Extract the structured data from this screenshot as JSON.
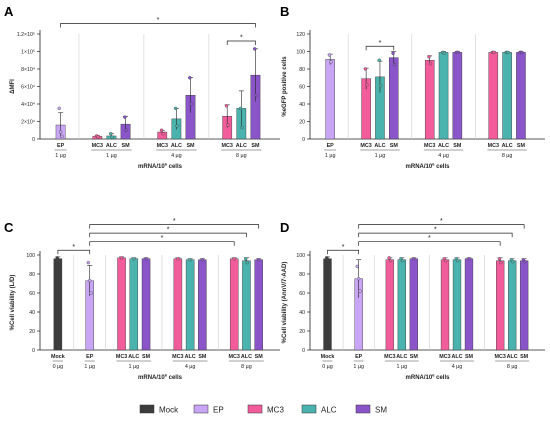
{
  "legend": [
    {
      "label": "Mock",
      "color": "#3d3d3d"
    },
    {
      "label": "EP",
      "color": "#c9a6f5"
    },
    {
      "label": "MC3",
      "color": "#f25c9a"
    },
    {
      "label": "ALC",
      "color": "#4bb3ad"
    },
    {
      "label": "SM",
      "color": "#8a55c9"
    }
  ],
  "colors": {
    "Mock": "#3d3d3d",
    "EP": "#c9a6f5",
    "MC3": "#f25c9a",
    "ALC": "#4bb3ad",
    "SM": "#8a55c9"
  },
  "chart_data": [
    {
      "panel": "A",
      "type": "bar",
      "ylabel": "ΔMFI",
      "xlabel_main": "mRNA/10",
      "xlabel_sup": "6",
      "xlabel_tail": " cells",
      "ylim": [
        0,
        120000
      ],
      "yticks": [
        "0",
        "2×10⁴",
        "4×10⁴",
        "6×10⁴",
        "8×10⁴",
        "1×10⁵",
        "1.2×10⁵"
      ],
      "ytick_values": [
        0,
        20000,
        40000,
        60000,
        80000,
        100000,
        120000
      ],
      "groups": [
        {
          "dose": "1 µg",
          "bars": [
            {
              "label": "EP",
              "series": "EP",
              "value": 16000,
              "err": 14000,
              "points": [
                35000,
                8000,
                3000
              ]
            }
          ]
        },
        {
          "dose": "1 µg",
          "bars": [
            {
              "label": "MC3",
              "series": "MC3",
              "value": 3000,
              "err": 1000,
              "points": [
                3500,
                2500
              ]
            },
            {
              "label": "ALC",
              "series": "ALC",
              "value": 3500,
              "err": 2500,
              "points": [
                6000,
                2000
              ]
            },
            {
              "label": "SM",
              "series": "SM",
              "value": 17000,
              "err": 9000,
              "points": [
                25000,
                10000
              ]
            }
          ]
        },
        {
          "dose": "4 µg",
          "bars": [
            {
              "label": "MC3",
              "series": "MC3",
              "value": 8000,
              "err": 2000,
              "points": [
                10000,
                6000
              ]
            },
            {
              "label": "ALC",
              "series": "ALC",
              "value": 23000,
              "err": 12000,
              "points": [
                35000,
                15000
              ]
            },
            {
              "label": "SM",
              "series": "SM",
              "value": 50000,
              "err": 20000,
              "points": [
                70000,
                40000
              ]
            }
          ]
        },
        {
          "dose": "8 µg",
          "bars": [
            {
              "label": "MC3",
              "series": "MC3",
              "value": 26000,
              "err": 13000,
              "points": [
                38000,
                16000
              ]
            },
            {
              "label": "ALC",
              "series": "ALC",
              "value": 35000,
              "err": 20000,
              "points": [
                35000,
                13000
              ]
            },
            {
              "label": "SM",
              "series": "SM",
              "value": 73000,
              "err": 30000,
              "points": [
                103000,
                50000
              ]
            }
          ]
        }
      ],
      "significance": [
        {
          "from": "0.0",
          "to": "3.2",
          "label": "*",
          "level": 132000
        },
        {
          "from": "3.0",
          "to": "3.2",
          "label": "*",
          "level": 112000
        }
      ]
    },
    {
      "panel": "B",
      "type": "bar",
      "ylabel": "%eGFP positive cells",
      "xlabel_main": "mRNA/10",
      "xlabel_sup": "6",
      "xlabel_tail": " cells",
      "ylim": [
        0,
        120
      ],
      "yticks": [
        "0",
        "20",
        "40",
        "60",
        "80",
        "100",
        "120"
      ],
      "ytick_values": [
        0,
        20,
        40,
        60,
        80,
        100,
        120
      ],
      "groups": [
        {
          "dose": "1 µg",
          "bars": [
            {
              "label": "EP",
              "series": "EP",
              "value": 91,
              "err": 6,
              "points": [
                96,
                88
              ]
            }
          ]
        },
        {
          "dose": "1 µg",
          "bars": [
            {
              "label": "MC3",
              "series": "MC3",
              "value": 69,
              "err": 12,
              "points": [
                80,
                62
              ]
            },
            {
              "label": "ALC",
              "series": "ALC",
              "value": 71,
              "err": 18,
              "points": [
                90,
                61
              ]
            },
            {
              "label": "SM",
              "series": "SM",
              "value": 93,
              "err": 7,
              "points": [
                98,
                85
              ]
            }
          ]
        },
        {
          "dose": "4 µg",
          "bars": [
            {
              "label": "MC3",
              "series": "MC3",
              "value": 90,
              "err": 5,
              "points": [
                94,
                86
              ]
            },
            {
              "label": "ALC",
              "series": "ALC",
              "value": 99,
              "err": 1,
              "points": [
                99,
                98
              ]
            },
            {
              "label": "SM",
              "series": "SM",
              "value": 99,
              "err": 1,
              "points": [
                99,
                99
              ]
            }
          ]
        },
        {
          "dose": "8 µg",
          "bars": [
            {
              "label": "MC3",
              "series": "MC3",
              "value": 99,
              "err": 1,
              "points": [
                99,
                99
              ]
            },
            {
              "label": "ALC",
              "series": "ALC",
              "value": 99,
              "err": 1,
              "points": [
                99,
                99
              ]
            },
            {
              "label": "SM",
              "series": "SM",
              "value": 99,
              "err": 1,
              "points": [
                99,
                99
              ]
            }
          ]
        }
      ],
      "significance": [
        {
          "from": "1.0",
          "to": "1.2",
          "label": "*",
          "level": 106
        }
      ]
    },
    {
      "panel": "C",
      "type": "bar",
      "ylabel": "%Cell viability (L/D)",
      "xlabel_main": "mRNA/10",
      "xlabel_sup": "6",
      "xlabel_tail": " cells",
      "ylim": [
        0,
        100
      ],
      "yticks": [
        "0",
        "20",
        "40",
        "60",
        "80",
        "100"
      ],
      "ytick_values": [
        0,
        20,
        40,
        60,
        80,
        100
      ],
      "groups": [
        {
          "dose": "0 µg",
          "bars": [
            {
              "label": "Mock",
              "series": "Mock",
              "value": 96,
              "err": 2,
              "points": [
                97,
                95
              ]
            }
          ]
        },
        {
          "dose": "1 µg",
          "bars": [
            {
              "label": "EP",
              "series": "EP",
              "value": 73,
              "err": 16,
              "points": [
                92,
                73,
                60
              ]
            }
          ]
        },
        {
          "dose": "1 µg",
          "bars": [
            {
              "label": "MC3",
              "series": "MC3",
              "value": 97,
              "err": 1,
              "points": [
                97
              ]
            },
            {
              "label": "ALC",
              "series": "ALC",
              "value": 96,
              "err": 1,
              "points": [
                96
              ]
            },
            {
              "label": "SM",
              "series": "SM",
              "value": 96,
              "err": 1,
              "points": [
                96
              ]
            }
          ]
        },
        {
          "dose": "4 µg",
          "bars": [
            {
              "label": "MC3",
              "series": "MC3",
              "value": 96,
              "err": 1,
              "points": [
                96
              ]
            },
            {
              "label": "ALC",
              "series": "ALC",
              "value": 95,
              "err": 1,
              "points": [
                95
              ]
            },
            {
              "label": "SM",
              "series": "SM",
              "value": 95,
              "err": 1,
              "points": [
                95
              ]
            }
          ]
        },
        {
          "dose": "8 µg",
          "bars": [
            {
              "label": "MC3",
              "series": "MC3",
              "value": 96,
              "err": 1,
              "points": [
                96
              ]
            },
            {
              "label": "ALC",
              "series": "ALC",
              "value": 94,
              "err": 3,
              "points": [
                96,
                92
              ]
            },
            {
              "label": "SM",
              "series": "SM",
              "value": 95,
              "err": 1,
              "points": [
                95
              ]
            }
          ]
        }
      ],
      "significance": [
        {
          "from": "0.0",
          "to": "1.0",
          "label": "*",
          "level": 105
        },
        {
          "from": "1.0",
          "to": "4.0",
          "label": "*",
          "level": 114
        },
        {
          "from": "1.0",
          "to": "4.1",
          "label": "*",
          "level": 123
        },
        {
          "from": "1.0",
          "to": "4.2",
          "label": "*",
          "level": 132
        }
      ]
    },
    {
      "panel": "D",
      "type": "bar",
      "ylabel": "%Cell viability (AnnV/7-AAD)",
      "xlabel_main": "mRNA/10",
      "xlabel_sup": "6",
      "xlabel_tail": " cells",
      "ylim": [
        0,
        100
      ],
      "yticks": [
        "0",
        "20",
        "40",
        "60",
        "80",
        "100"
      ],
      "ytick_values": [
        0,
        20,
        40,
        60,
        80,
        100
      ],
      "groups": [
        {
          "dose": "0 µg",
          "bars": [
            {
              "label": "Mock",
              "series": "Mock",
              "value": 96,
              "err": 2,
              "points": [
                97,
                95
              ]
            }
          ]
        },
        {
          "dose": "1 µg",
          "bars": [
            {
              "label": "EP",
              "series": "EP",
              "value": 75,
              "err": 20,
              "points": [
                88,
                75,
                62
              ]
            }
          ]
        },
        {
          "dose": "1 µg",
          "bars": [
            {
              "label": "MC3",
              "series": "MC3",
              "value": 95,
              "err": 2,
              "points": [
                97,
                94
              ]
            },
            {
              "label": "ALC",
              "series": "ALC",
              "value": 95,
              "err": 2,
              "points": [
                96,
                94
              ]
            },
            {
              "label": "SM",
              "series": "SM",
              "value": 96,
              "err": 1,
              "points": [
                96
              ]
            }
          ]
        },
        {
          "dose": "4 µg",
          "bars": [
            {
              "label": "MC3",
              "series": "MC3",
              "value": 95,
              "err": 2,
              "points": [
                96,
                94
              ]
            },
            {
              "label": "ALC",
              "series": "ALC",
              "value": 95,
              "err": 2,
              "points": [
                96,
                94
              ]
            },
            {
              "label": "SM",
              "series": "SM",
              "value": 96,
              "err": 1,
              "points": [
                96
              ]
            }
          ]
        },
        {
          "dose": "8 µg",
          "bars": [
            {
              "label": "MC3",
              "series": "MC3",
              "value": 94,
              "err": 3,
              "points": [
                96,
                92
              ]
            },
            {
              "label": "ALC",
              "series": "ALC",
              "value": 94,
              "err": 2,
              "points": [
                95,
                93
              ]
            },
            {
              "label": "SM",
              "series": "SM",
              "value": 94,
              "err": 2,
              "points": [
                95,
                93
              ]
            }
          ]
        }
      ],
      "significance": [
        {
          "from": "0.0",
          "to": "1.0",
          "label": "*",
          "level": 105
        },
        {
          "from": "1.0",
          "to": "4.0",
          "label": "*",
          "level": 114
        },
        {
          "from": "1.0",
          "to": "4.1",
          "label": "*",
          "level": 123
        },
        {
          "from": "1.0",
          "to": "4.2",
          "label": "*",
          "level": 132
        }
      ]
    }
  ]
}
